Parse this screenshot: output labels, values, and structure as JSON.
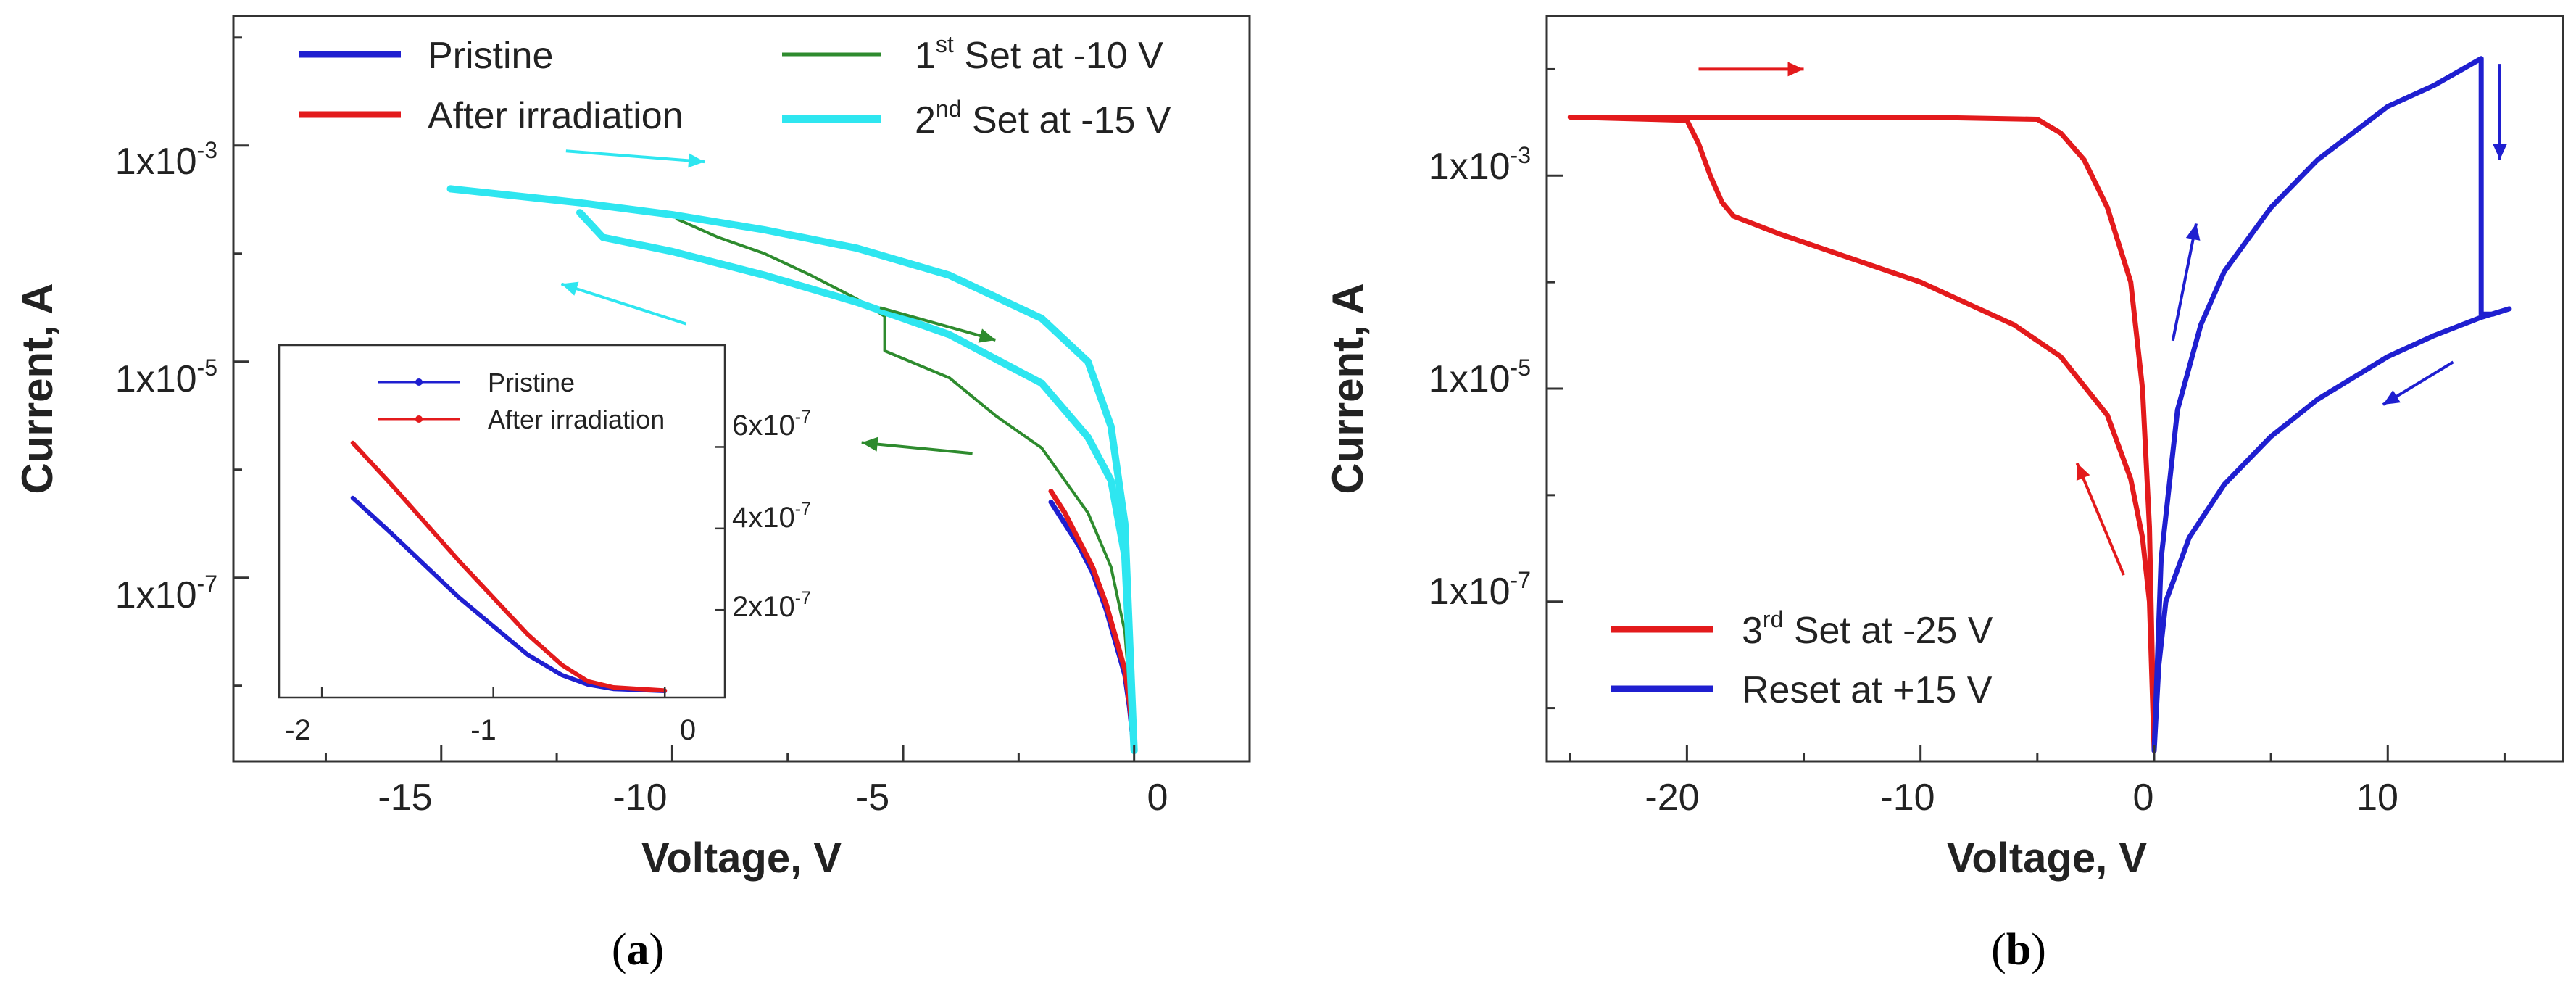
{
  "chart_data": [
    {
      "panel": "a",
      "panel_label": "(a)",
      "type": "line",
      "xlabel": "Voltage, V",
      "ylabel": "Current, A",
      "xlim": [
        -19.5,
        2.5
      ],
      "ylim_log10": [
        -8.7,
        -1.8
      ],
      "x_ticks": [
        -15,
        -10,
        -5,
        0
      ],
      "x_tick_labels": [
        "-15",
        "-10",
        "-5",
        "0"
      ],
      "y_major_ticks": [
        -3,
        -5,
        -7
      ],
      "y_minor_ticks": [
        -2,
        -4,
        -6,
        -8
      ],
      "y_tick_labels": [
        "1x10-3",
        "1x10-5",
        "1x10-7"
      ],
      "legend": [
        {
          "label": "Pristine",
          "color": "#1f1fd0"
        },
        {
          "label": "After irradiation",
          "color": "#e31a1c"
        },
        {
          "label": "1st Set at -10 V",
          "color": "#2e8b2e"
        },
        {
          "label": "2nd Set at -15 V",
          "color": "#2ee6f0"
        }
      ],
      "series": [
        {
          "name": "Pristine",
          "color": "#1f1fd0",
          "x": [
            -1.8,
            -1.5,
            -1.2,
            -0.9,
            -0.6,
            -0.4,
            -0.2,
            -0.1,
            0
          ],
          "log10y": [
            -6.3,
            -6.5,
            -6.7,
            -6.95,
            -7.3,
            -7.6,
            -7.9,
            -8.2,
            -8.6
          ]
        },
        {
          "name": "After irradiation",
          "color": "#e31a1c",
          "x": [
            -1.8,
            -1.5,
            -1.2,
            -0.9,
            -0.6,
            -0.4,
            -0.2,
            -0.1,
            0
          ],
          "log10y": [
            -6.2,
            -6.4,
            -6.65,
            -6.9,
            -7.25,
            -7.55,
            -7.85,
            -8.15,
            -8.6
          ]
        },
        {
          "name": "1st Set at -10 V",
          "color": "#2e8b2e",
          "x": [
            -9.9,
            -9,
            -8,
            -7,
            -6,
            -5.4,
            -5.4,
            -4,
            -3,
            -2,
            -1.5,
            -1,
            -0.5,
            -0.2,
            0
          ],
          "log10y": [
            -3.68,
            -3.85,
            -4.0,
            -4.2,
            -4.42,
            -4.58,
            -4.9,
            -5.15,
            -5.5,
            -5.8,
            -6.1,
            -6.4,
            -6.9,
            -7.5,
            -8.6
          ]
        },
        {
          "name": "2nd Set at -15 V",
          "color": "#2ee6f0",
          "x": [
            -14.8,
            -12,
            -10,
            -8,
            -6,
            -4,
            -2,
            -1,
            -0.5,
            -0.2,
            0,
            -0.2,
            -0.5,
            -1,
            -2,
            -4,
            -6,
            -8,
            -10,
            -11.5,
            -12
          ],
          "log10y": [
            -3.4,
            -3.53,
            -3.64,
            -3.78,
            -3.95,
            -4.2,
            -4.6,
            -5.0,
            -5.6,
            -6.5,
            -8.6,
            -6.8,
            -6.1,
            -5.7,
            -5.2,
            -4.75,
            -4.45,
            -4.2,
            -3.98,
            -3.85,
            -3.62
          ]
        }
      ],
      "inset": {
        "xlim": [
          -2.25,
          0.35
        ],
        "ylim": [
          -1.5e-08,
          8.5e-07
        ],
        "x_ticks": [
          -2,
          -1,
          0
        ],
        "x_tick_labels": [
          "-2",
          "-1",
          "0"
        ],
        "y_ticks": [
          2e-07,
          4e-07,
          6e-07
        ],
        "y_tick_labels": [
          "2x10-7",
          "4x10-7",
          "6x10-7"
        ],
        "legend": [
          {
            "label": "Pristine",
            "color": "#1f1fd0"
          },
          {
            "label": "After irradiation",
            "color": "#e31a1c"
          }
        ],
        "series": [
          {
            "name": "Pristine",
            "color": "#1f1fd0",
            "x": [
              -1.82,
              -1.6,
              -1.4,
              -1.2,
              -1.0,
              -0.8,
              -0.6,
              -0.45,
              -0.3,
              0
            ],
            "y": [
              4.75e-07,
              3.9e-07,
              3.1e-07,
              2.3e-07,
              1.6e-07,
              9e-08,
              4e-08,
              1.7e-08,
              6e-09,
              1e-09
            ]
          },
          {
            "name": "After irradiation",
            "color": "#e31a1c",
            "x": [
              -1.82,
              -1.6,
              -1.4,
              -1.2,
              -1.0,
              -0.8,
              -0.6,
              -0.45,
              -0.3,
              0
            ],
            "y": [
              6.1e-07,
              5.1e-07,
              4.15e-07,
              3.2e-07,
              2.3e-07,
              1.4e-07,
              6.5e-08,
              2.5e-08,
              1e-08,
              2e-09
            ]
          }
        ]
      },
      "arrows": [
        {
          "x1": -12.3,
          "y1": -3.05,
          "x2": -9.3,
          "y2": -3.15,
          "color": "#2ee6f0"
        },
        {
          "x1": -9.7,
          "y1": -4.65,
          "x2": -12.4,
          "y2": -4.28,
          "color": "#2ee6f0"
        },
        {
          "x1": -5.5,
          "y1": -4.5,
          "x2": -3.0,
          "y2": -4.8,
          "color": "#2e8b2e"
        },
        {
          "x1": -3.5,
          "y1": -5.85,
          "x2": -5.9,
          "y2": -5.75,
          "color": "#2e8b2e"
        }
      ]
    },
    {
      "panel": "b",
      "panel_label": "(b)",
      "type": "line",
      "xlabel": "Voltage, V",
      "ylabel": "Current, A",
      "xlim": [
        -26,
        17.5
      ],
      "ylim_log10": [
        -8.5,
        -1.5
      ],
      "x_ticks": [
        -20,
        -10,
        0,
        10
      ],
      "x_tick_labels": [
        "-20",
        "-10",
        "0",
        "10"
      ],
      "y_major_ticks": [
        -3,
        -5,
        -7
      ],
      "y_minor_ticks": [
        -2,
        -4,
        -6,
        -8
      ],
      "y_tick_labels": [
        "1x10-3",
        "1x10-5",
        "1x10-7"
      ],
      "legend": [
        {
          "label": "3rd Set at -25 V",
          "color": "#e31a1c"
        },
        {
          "label": "Reset at +15 V",
          "color": "#1f1fd0"
        }
      ],
      "series": [
        {
          "name": "3rd Set at -25 V",
          "color": "#e31a1c",
          "x": [
            -25,
            -20,
            -15,
            -10,
            -5,
            -4,
            -3,
            -2,
            -1,
            -0.5,
            -0.2,
            0,
            -0.2,
            -0.5,
            -1,
            -2,
            -4,
            -6,
            -8,
            -10,
            -12,
            -14,
            -16,
            -18,
            -18.5,
            -19,
            -19.5,
            -20,
            -25
          ],
          "log10y": [
            -2.45,
            -2.45,
            -2.45,
            -2.45,
            -2.47,
            -2.6,
            -2.85,
            -3.3,
            -4.0,
            -5.0,
            -6.3,
            -8.4,
            -7.0,
            -6.4,
            -5.85,
            -5.25,
            -4.7,
            -4.4,
            -4.2,
            -4.0,
            -3.85,
            -3.7,
            -3.55,
            -3.38,
            -3.25,
            -3.0,
            -2.7,
            -2.48,
            -2.45
          ]
        },
        {
          "name": "Reset at +15 V",
          "color": "#1f1fd0",
          "x": [
            0,
            0.3,
            1,
            2,
            3,
            5,
            7,
            10,
            12,
            14,
            14,
            14.5,
            15.2,
            14,
            12,
            10,
            7,
            5,
            3,
            1.5,
            0.5,
            0.2,
            0
          ],
          "log10y": [
            -8.4,
            -6.6,
            -5.2,
            -4.4,
            -3.9,
            -3.3,
            -2.85,
            -2.35,
            -2.15,
            -1.9,
            -4.3,
            -4.3,
            -4.25,
            -4.33,
            -4.5,
            -4.7,
            -5.1,
            -5.45,
            -5.9,
            -6.4,
            -7.0,
            -7.6,
            -8.4
          ]
        }
      ],
      "arrows": [
        {
          "x1": -19.5,
          "y1": -2.0,
          "x2": -15.0,
          "y2": -2.0,
          "color": "#e31a1c"
        },
        {
          "x1": -1.3,
          "y1": -6.75,
          "x2": -3.3,
          "y2": -5.7,
          "color": "#e31a1c"
        },
        {
          "x1": 0.8,
          "y1": -4.55,
          "x2": 1.8,
          "y2": -3.45,
          "color": "#1f1fd0"
        },
        {
          "x1": 14.8,
          "y1": -1.95,
          "x2": 14.8,
          "y2": -2.85,
          "color": "#1f1fd0"
        },
        {
          "x1": 12.8,
          "y1": -4.75,
          "x2": 9.8,
          "y2": -5.15,
          "color": "#1f1fd0"
        }
      ]
    }
  ]
}
